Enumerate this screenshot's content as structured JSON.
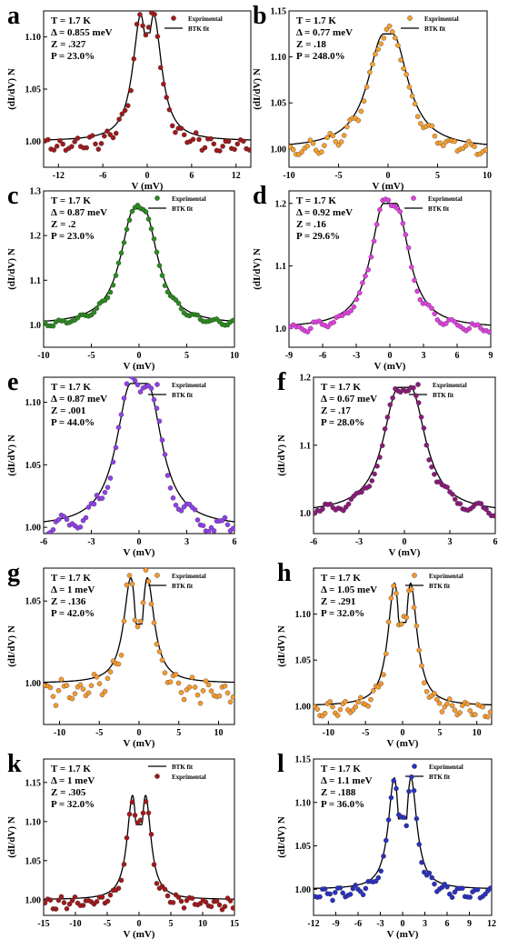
{
  "figure": {
    "xlabel": "V (mV)",
    "ylabel": "(dI/dV) N"
  },
  "chart_data": [
    {
      "type": "scatter",
      "panel": "a",
      "xlim": [
        -14,
        14
      ],
      "ylim": [
        0.975,
        1.125
      ],
      "xticks": [
        -12,
        -6,
        0,
        6,
        12
      ],
      "yticks": [
        1.0,
        1.05,
        1.1
      ],
      "params": [
        "T = 1.7 K",
        "Δ = 0.855 meV",
        "Z = .327",
        "P = 23.0%"
      ],
      "legend": [
        "Exprimental",
        "BTK fit"
      ],
      "series_colors": [
        "#a0191b",
        "#000000"
      ],
      "delta": 0.855,
      "peak": 1.122,
      "base": 1.0,
      "dip": 0.988,
      "dip_at": 0,
      "w": 2.4,
      "gap_depth": 0.014
    },
    {
      "type": "scatter",
      "panel": "b",
      "xlim": [
        -10,
        10
      ],
      "ylim": [
        0.98,
        1.15
      ],
      "xticks": [
        -10,
        -5,
        0,
        5,
        10
      ],
      "yticks": [
        1.0,
        1.05,
        1.1,
        1.15
      ],
      "params": [
        "T = 1.7 K",
        "Δ = 0.77 meV",
        "Z = .18",
        "P = 248.0%"
      ],
      "legend": [
        "Exprimental",
        "BTK fit"
      ],
      "series_colors": [
        "#f5a030",
        "#000000"
      ],
      "delta": 0.77,
      "peak": 1.125,
      "base": 1.0,
      "w": 1.9,
      "gap_depth": 0.0
    },
    {
      "type": "scatter",
      "panel": "c",
      "xlim": [
        -10,
        10
      ],
      "ylim": [
        0.95,
        1.3
      ],
      "xticks": [
        -10,
        -5,
        0,
        5,
        10
      ],
      "yticks": [
        1.0,
        1.1,
        1.2,
        1.3
      ],
      "params": [
        "T = 1.7 K",
        "Δ = 0.87 meV",
        "Z = .2",
        "P = 23.0%"
      ],
      "legend": [
        "Exprimental",
        "BTK fit"
      ],
      "series_colors": [
        "#2a8a1e",
        "#000000"
      ],
      "delta": 0.87,
      "peak": 1.26,
      "base": 1.0,
      "w": 1.7,
      "gap_depth": 0.0
    },
    {
      "type": "scatter",
      "panel": "d",
      "xlim": [
        -9,
        9
      ],
      "ylim": [
        0.97,
        1.22
      ],
      "xticks": [
        -9,
        -6,
        -3,
        0,
        3,
        6,
        9
      ],
      "yticks": [
        1.0,
        1.1,
        1.2
      ],
      "params": [
        "T = 1.7 K",
        "Δ = 0.92 meV",
        "Z = .16",
        "P = 29.6%"
      ],
      "legend": [
        "Exprimental",
        "BTK fit"
      ],
      "series_colors": [
        "#e040e0",
        "#000000"
      ],
      "delta": 0.92,
      "peak": 1.2,
      "base": 1.0,
      "w": 1.4,
      "gap_depth": 0.0
    },
    {
      "type": "scatter",
      "panel": "e",
      "xlim": [
        -6,
        6
      ],
      "ylim": [
        0.995,
        1.12
      ],
      "xticks": [
        -6,
        -3,
        0,
        3,
        6
      ],
      "yticks": [
        1.0,
        1.05,
        1.1
      ],
      "params": [
        "T = 1.7 K",
        "Δ = 0.87 meV",
        "Z = .001",
        "P = 44.0%"
      ],
      "legend": [
        "Exprimental",
        "BTK fit"
      ],
      "series_colors": [
        "#9040e8",
        "#000000"
      ],
      "delta": 0.87,
      "peak": 1.115,
      "base": 1.0,
      "w": 1.1,
      "gap_depth": 0.0
    },
    {
      "type": "scatter",
      "panel": "f",
      "xlim": [
        -6,
        6
      ],
      "ylim": [
        0.97,
        1.2
      ],
      "xticks": [
        -6,
        -3,
        0,
        3,
        6
      ],
      "yticks": [
        1.0,
        1.1,
        1.2
      ],
      "params": [
        "T = 1.7 K",
        "Δ = 0.67 meV",
        "Z = .17",
        "P = 28.0%"
      ],
      "legend": [
        "Exprimental",
        "BTK fit"
      ],
      "series_colors": [
        "#8a1a7a",
        "#000000"
      ],
      "delta": 0.67,
      "peak": 1.185,
      "base": 1.0,
      "w": 1.2,
      "gap_depth": 0.0
    },
    {
      "type": "scatter",
      "panel": "g",
      "xlim": [
        -12,
        12
      ],
      "ylim": [
        0.975,
        1.07
      ],
      "xticks": [
        -10,
        -5,
        0,
        5,
        10
      ],
      "yticks": [
        1.0,
        1.05
      ],
      "params": [
        "T = 1.7 K",
        "Δ = 1 meV",
        "Z = .136",
        "P = 42.0%"
      ],
      "legend": [
        "Exprimental",
        "BTK fit"
      ],
      "series_colors": [
        "#f59a30",
        "#000000"
      ],
      "delta": 1.0,
      "peak": 1.065,
      "base": 1.0,
      "w": 2.0,
      "gap_depth": 0.025
    },
    {
      "type": "scatter",
      "panel": "h",
      "xlim": [
        -12,
        12
      ],
      "ylim": [
        0.98,
        1.15
      ],
      "xticks": [
        -10,
        -5,
        0,
        5,
        10
      ],
      "yticks": [
        1.0,
        1.05,
        1.1
      ],
      "params": [
        "T = 1.7 K",
        "Δ = 1.05 meV",
        "Z = .291",
        "P = 32.0%"
      ],
      "legend": [
        "Exprimental",
        "BTK fit"
      ],
      "series_colors": [
        "#f59a30",
        "#000000"
      ],
      "delta": 1.05,
      "peak": 1.135,
      "base": 1.0,
      "w": 2.0,
      "gap_depth": 0.04
    },
    {
      "type": "scatter",
      "panel": "k",
      "xlim": [
        -15,
        15
      ],
      "ylim": [
        0.98,
        1.18
      ],
      "xticks": [
        -15,
        -10,
        -5,
        0,
        5,
        10,
        15
      ],
      "yticks": [
        1.0,
        1.05,
        1.1,
        1.15
      ],
      "params": [
        "T = 1.7 K",
        "Δ = 1 meV",
        "Z = .305",
        "P = 32.0%"
      ],
      "legend": [
        "Exprimental",
        "BTK fit"
      ],
      "legend_order": "line-first",
      "series_colors": [
        "#a0191b",
        "#000000"
      ],
      "delta": 1.0,
      "peak": 1.135,
      "base": 1.0,
      "w": 1.9,
      "gap_depth": 0.035
    },
    {
      "type": "scatter",
      "panel": "l",
      "xlim": [
        -12,
        12
      ],
      "ylim": [
        0.97,
        1.15
      ],
      "xticks": [
        -12,
        -9,
        -6,
        -3,
        0,
        3,
        6,
        9,
        12
      ],
      "yticks": [
        1.0,
        1.05,
        1.1,
        1.15
      ],
      "params": [
        "T = 1.7 K",
        "Δ = 1.1 meV",
        "Z = .188",
        "P = 36.0%"
      ],
      "legend": [
        "Exprimental",
        "BTK fit"
      ],
      "series_colors": [
        "#2a30c0",
        "#000000"
      ],
      "delta": 1.1,
      "peak": 1.13,
      "base": 1.0,
      "w": 1.8,
      "gap_depth": 0.045
    }
  ]
}
